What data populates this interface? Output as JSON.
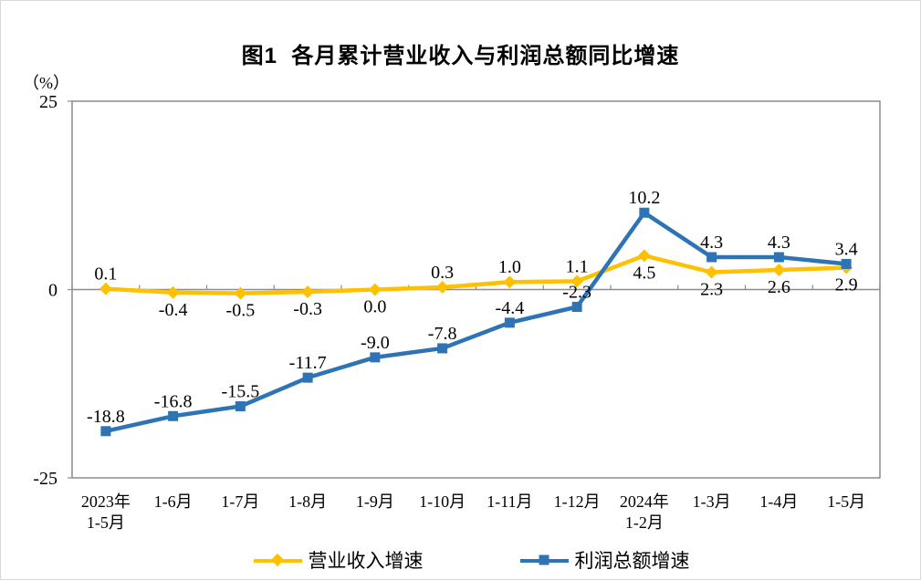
{
  "chart_data": {
    "type": "line",
    "title": "图1  各月累计营业收入与利润总额同比增速",
    "unit_label": "（%）",
    "ylim": [
      -25,
      25
    ],
    "yticks": [
      25,
      0,
      -25
    ],
    "grid": false,
    "legend_position": "bottom",
    "axis_color": "#8c8c8c",
    "text_color": "#000000",
    "categories": [
      "2023年\n1-5月",
      "1-6月",
      "1-7月",
      "1-8月",
      "1-9月",
      "1-10月",
      "1-11月",
      "1-12月",
      "2024年\n1-2月",
      "1-3月",
      "1-4月",
      "1-5月"
    ],
    "series": [
      {
        "name": "营业收入增速",
        "color": "#FFC000",
        "marker": "diamond",
        "values": [
          0.1,
          -0.4,
          -0.5,
          -0.3,
          0.0,
          0.3,
          1.0,
          1.1,
          4.5,
          2.3,
          2.6,
          2.9
        ],
        "label_pos": [
          "above",
          "below",
          "below",
          "below",
          "below",
          "above",
          "above",
          "above",
          "below",
          "below",
          "below",
          "below"
        ]
      },
      {
        "name": "利润总额增速",
        "color": "#2E74B5",
        "marker": "square",
        "values": [
          -18.8,
          -16.8,
          -15.5,
          -11.7,
          -9.0,
          -7.8,
          -4.4,
          -2.3,
          10.2,
          4.3,
          4.3,
          3.4
        ],
        "label_pos": [
          "above",
          "above",
          "above",
          "above",
          "above",
          "above",
          "above",
          "above",
          "above",
          "above",
          "above",
          "above"
        ]
      }
    ]
  }
}
